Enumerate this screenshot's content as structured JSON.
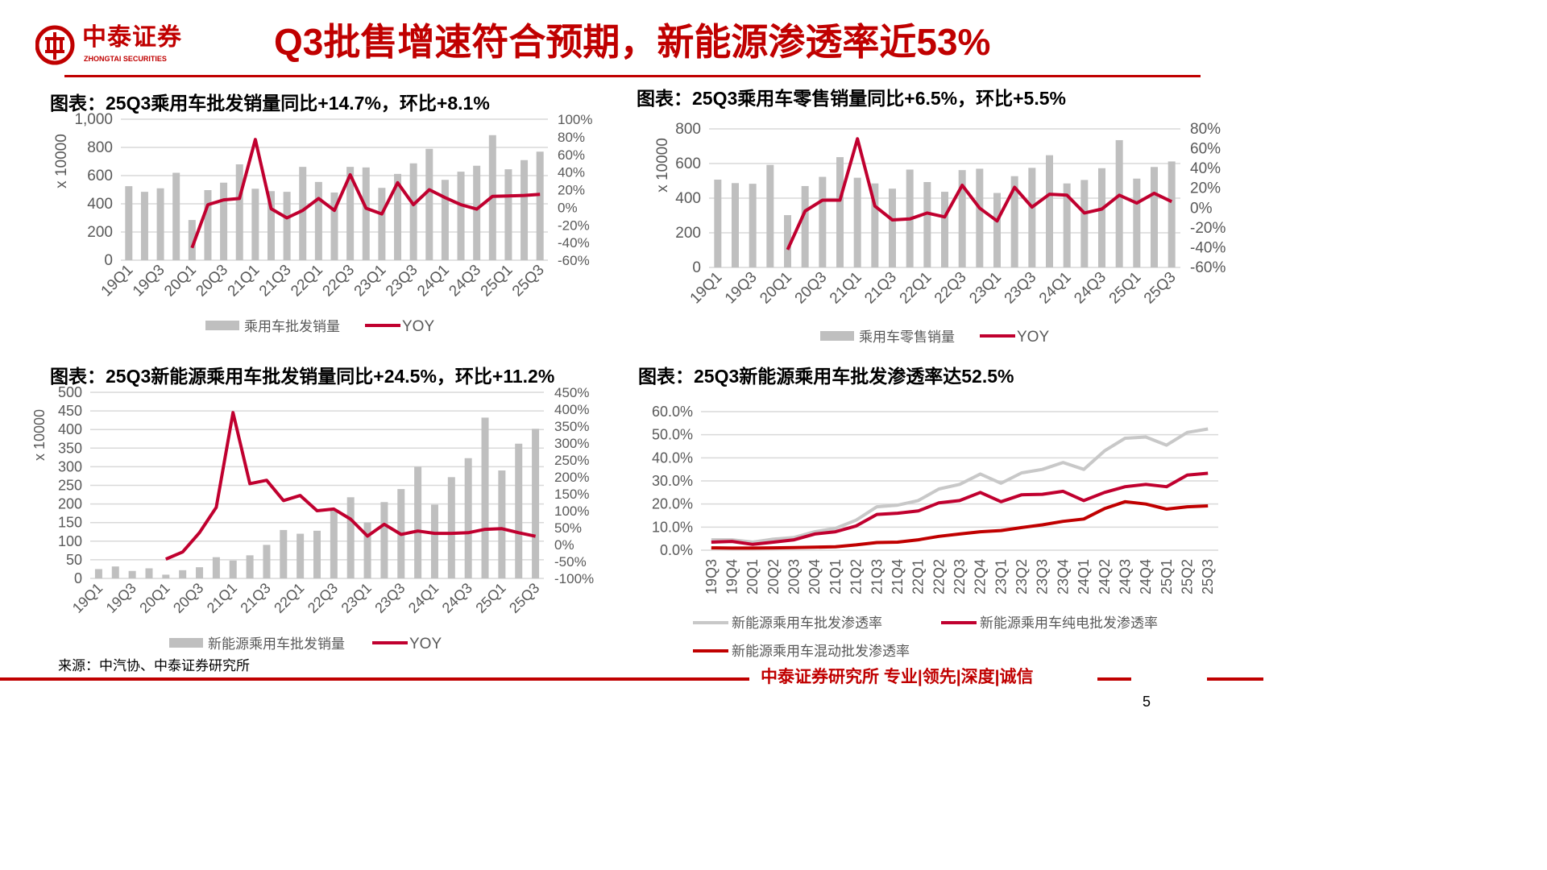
{
  "header": {
    "logo_name": "中泰证券",
    "logo_en": "ZHONGTAI SECURITIES",
    "title": "Q3批售增速符合预期，新能源渗透率近53%"
  },
  "colors": {
    "brand_red": "#c00000",
    "line_red": "#c0002f",
    "bar_gray": "#bfbfbf",
    "line_gray": "#c8c8c8"
  },
  "chart_data": [
    {
      "type": "bar+line",
      "title": "图表：25Q3乘用车批发销量同比+14.7%，环比+8.1%",
      "ylabel": "x 10000",
      "categories": [
        "19Q1",
        "19Q2",
        "19Q3",
        "19Q4",
        "20Q1",
        "20Q2",
        "20Q3",
        "20Q4",
        "21Q1",
        "21Q2",
        "21Q3",
        "21Q4",
        "22Q1",
        "22Q2",
        "22Q3",
        "22Q4",
        "23Q1",
        "23Q2",
        "23Q3",
        "23Q4",
        "24Q1",
        "24Q2",
        "24Q3",
        "24Q4",
        "25Q1",
        "25Q2",
        "25Q3"
      ],
      "left_ticks": [
        "0",
        "200",
        "400",
        "600",
        "800",
        "1,000"
      ],
      "right_ticks": [
        "-60%",
        "-40%",
        "-20%",
        "0%",
        "20%",
        "40%",
        "60%",
        "80%",
        "100%"
      ],
      "ylim": [
        0,
        1000
      ],
      "y2lim": [
        -60,
        100
      ],
      "series": [
        {
          "name": "乘用车批发销量",
          "kind": "bar",
          "values": [
            525,
            485,
            510,
            620,
            285,
            497,
            550,
            680,
            507,
            490,
            485,
            662,
            555,
            480,
            662,
            658,
            513,
            612,
            687,
            790,
            570,
            628,
            670,
            887,
            645,
            710,
            770
          ]
        },
        {
          "name": "YOY",
          "kind": "line",
          "axis": "right",
          "values": [
            null,
            null,
            null,
            null,
            -46,
            3,
            8.5,
            10,
            77,
            -1.6,
            -12,
            -3.5,
            10,
            -3.5,
            37,
            -1,
            -7.5,
            28,
            3,
            20,
            11,
            3,
            -2,
            12.5,
            13,
            13.5,
            14.7
          ]
        }
      ]
    },
    {
      "type": "bar+line",
      "title": "图表：25Q3乘用车零售销量同比+6.5%，环比+5.5%",
      "ylabel": "x 10000",
      "categories": [
        "19Q1",
        "19Q2",
        "19Q3",
        "19Q4",
        "20Q1",
        "20Q2",
        "20Q3",
        "20Q4",
        "21Q1",
        "21Q2",
        "21Q3",
        "21Q4",
        "22Q1",
        "22Q2",
        "22Q3",
        "22Q4",
        "23Q1",
        "23Q2",
        "23Q3",
        "23Q4",
        "24Q1",
        "24Q2",
        "24Q3",
        "24Q4",
        "25Q1",
        "25Q2",
        "25Q3"
      ],
      "left_ticks": [
        "0",
        "200",
        "400",
        "600",
        "800"
      ],
      "right_ticks": [
        "-60%",
        "-40%",
        "-20%",
        "0%",
        "20%",
        "40%",
        "60%",
        "80%"
      ],
      "ylim": [
        0,
        800
      ],
      "y2lim": [
        -60,
        80
      ],
      "series": [
        {
          "name": "乘用车零售销量",
          "kind": "bar",
          "values": [
            507,
            487,
            483,
            592,
            302,
            470,
            523,
            637,
            518,
            485,
            455,
            565,
            493,
            437,
            562,
            570,
            430,
            527,
            575,
            648,
            485,
            505,
            573,
            735,
            513,
            580,
            612
          ]
        },
        {
          "name": "YOY",
          "kind": "line",
          "axis": "right",
          "values": [
            null,
            null,
            null,
            null,
            -42,
            -3,
            8,
            8,
            70,
            2,
            -12,
            -11,
            -5,
            -9,
            23,
            0,
            -13,
            21,
            1,
            14,
            13,
            -5,
            -1,
            13,
            5,
            15,
            6.5
          ]
        }
      ]
    },
    {
      "type": "bar+line",
      "title": "图表：25Q3新能源乘用车批发销量同比+24.5%，环比+11.2%",
      "ylabel": "x 10000",
      "categories": [
        "19Q1",
        "19Q2",
        "19Q3",
        "19Q4",
        "20Q1",
        "20Q2",
        "20Q3",
        "20Q4",
        "21Q1",
        "21Q2",
        "21Q3",
        "21Q4",
        "22Q1",
        "22Q2",
        "22Q3",
        "22Q4",
        "23Q1",
        "23Q2",
        "23Q3",
        "23Q4",
        "24Q1",
        "24Q2",
        "24Q3",
        "24Q4",
        "25Q1",
        "25Q2",
        "25Q3"
      ],
      "left_ticks": [
        "0",
        "50",
        "100",
        "150",
        "200",
        "250",
        "300",
        "350",
        "400",
        "450",
        "500"
      ],
      "right_ticks": [
        "-100%",
        "-50%",
        "0%",
        "50%",
        "100%",
        "150%",
        "200%",
        "250%",
        "300%",
        "350%",
        "400%",
        "450%"
      ],
      "ylim": [
        0,
        500
      ],
      "y2lim": [
        -100,
        450
      ],
      "series": [
        {
          "name": "新能源乘用车批发销量",
          "kind": "bar",
          "values": [
            25,
            32,
            20,
            27,
            10,
            22,
            30,
            57,
            48,
            62,
            90,
            130,
            120,
            128,
            185,
            218,
            150,
            205,
            240,
            300,
            198,
            272,
            323,
            432,
            290,
            362,
            402
          ]
        },
        {
          "name": "YOY",
          "kind": "line",
          "axis": "right",
          "values": [
            null,
            null,
            null,
            null,
            -43,
            -22,
            35,
            110,
            390,
            180,
            190,
            130,
            145,
            100,
            105,
            75,
            25,
            60,
            30,
            40,
            33,
            33,
            35,
            45,
            47,
            35,
            24.5
          ]
        }
      ]
    },
    {
      "type": "line",
      "title": "图表：25Q3新能源乘用车批发渗透率达52.5%",
      "categories": [
        "19Q3",
        "19Q4",
        "20Q1",
        "20Q2",
        "20Q3",
        "20Q4",
        "21Q1",
        "21Q2",
        "21Q3",
        "21Q4",
        "22Q1",
        "22Q2",
        "22Q3",
        "22Q4",
        "23Q1",
        "23Q2",
        "23Q3",
        "23Q4",
        "24Q1",
        "24Q2",
        "24Q3",
        "24Q4",
        "25Q1",
        "25Q2",
        "25Q3"
      ],
      "left_ticks": [
        "0.0%",
        "10.0%",
        "20.0%",
        "30.0%",
        "40.0%",
        "50.0%",
        "60.0%"
      ],
      "ylim": [
        0,
        60
      ],
      "series": [
        {
          "name": "新能源乘用车批发渗透率",
          "color": "#c8c8c8",
          "values": [
            4.5,
            4.5,
            3.5,
            4.8,
            5.5,
            8,
            9.5,
            13,
            18.8,
            19.5,
            21.5,
            26.5,
            28.5,
            33,
            29,
            33.5,
            35,
            38,
            35,
            43,
            48.5,
            49,
            45.5,
            51,
            52.5
          ]
        },
        {
          "name": "新能源乘用车纯电批发渗透率",
          "color": "#c0002f",
          "values": [
            3.5,
            3.8,
            2.5,
            3.5,
            4.5,
            7,
            8,
            10.5,
            15.5,
            16,
            17,
            20.5,
            21.5,
            25,
            21,
            24,
            24.2,
            25.5,
            21.5,
            25,
            27.5,
            28.5,
            27.5,
            32.5,
            33.3
          ]
        },
        {
          "name": "新能源乘用车混动批发渗透率",
          "color": "#c00000",
          "values": [
            1,
            0.9,
            0.9,
            1,
            1.1,
            1.3,
            1.5,
            2.3,
            3.3,
            3.5,
            4.5,
            6,
            7,
            8,
            8.5,
            9.8,
            11,
            12.5,
            13.5,
            18,
            21,
            20,
            17.8,
            18.8,
            19.2
          ]
        }
      ]
    }
  ],
  "footer": {
    "source": "来源：中汽协、中泰证券研究所",
    "slogan": "中泰证券研究所 专业|领先|深度|诚信",
    "page_number": "5"
  }
}
